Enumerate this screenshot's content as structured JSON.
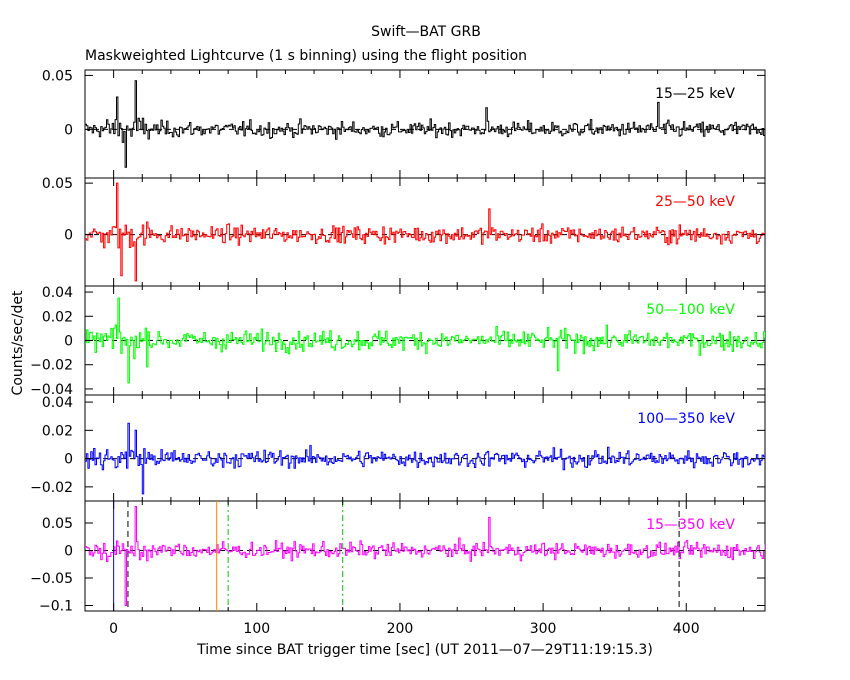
{
  "chart_data": {
    "type": "line",
    "title": "Swift—BAT GRB",
    "subtitle": "Maskweighted Lightcurve (1 s binning) using the flight position",
    "xlabel": "Time since BAT trigger time [sec] (UT 2011—07—29T11:19:15.3)",
    "ylabel": "Counts/sec/det",
    "xlim": [
      -20,
      455
    ],
    "x_ticks": [
      {
        "v": 0,
        "t": "0"
      },
      {
        "v": 100,
        "t": "100"
      },
      {
        "v": 200,
        "t": "200"
      },
      {
        "v": 300,
        "t": "300"
      },
      {
        "v": 400,
        "t": "400"
      }
    ],
    "panels": [
      {
        "band": "15—25 keV",
        "color": "#000000",
        "ylim": [
          -0.045,
          0.055
        ],
        "y_ticks": [
          {
            "v": 0.05,
            "t": "0.05"
          },
          {
            "v": 0,
            "t": "0"
          }
        ],
        "noise_sigma": 0.007,
        "spikes": [
          {
            "x": 15,
            "y": 0.045
          },
          {
            "x": 2,
            "y": 0.03
          },
          {
            "x": 8,
            "y": -0.035
          },
          {
            "x": 380,
            "y": 0.025
          },
          {
            "x": 260,
            "y": 0.02
          }
        ]
      },
      {
        "band": "25—50 keV",
        "color": "#ff0000",
        "ylim": [
          -0.05,
          0.055
        ],
        "y_ticks": [
          {
            "v": 0.05,
            "t": "0.05"
          },
          {
            "v": 0,
            "t": "0"
          }
        ],
        "noise_sigma": 0.008,
        "spikes": [
          {
            "x": 2,
            "y": 0.05
          },
          {
            "x": 15,
            "y": -0.045
          },
          {
            "x": 5,
            "y": -0.04
          },
          {
            "x": 262,
            "y": 0.025
          }
        ]
      },
      {
        "band": "50—100 keV",
        "color": "#00ff00",
        "ylim": [
          -0.045,
          0.045
        ],
        "y_ticks": [
          {
            "v": 0.04,
            "t": "0.04"
          },
          {
            "v": 0.02,
            "t": "0.02"
          },
          {
            "v": 0,
            "t": "0"
          },
          {
            "v": -0.02,
            "t": "−0.02"
          },
          {
            "v": -0.04,
            "t": "−0.04"
          }
        ],
        "noise_sigma": 0.008,
        "spikes": [
          {
            "x": 3,
            "y": 0.035
          },
          {
            "x": 10,
            "y": -0.035
          },
          {
            "x": 310,
            "y": -0.025
          }
        ]
      },
      {
        "band": "100—350 keV",
        "color": "#0000ff",
        "ylim": [
          -0.03,
          0.045
        ],
        "y_ticks": [
          {
            "v": 0.04,
            "t": "0.04"
          },
          {
            "v": 0.02,
            "t": "0.02"
          },
          {
            "v": 0,
            "t": "0"
          },
          {
            "v": -0.02,
            "t": "−0.02"
          }
        ],
        "noise_sigma": 0.006,
        "spikes": [
          {
            "x": 10,
            "y": 0.025
          },
          {
            "x": 20,
            "y": -0.025
          },
          {
            "x": 15,
            "y": 0.02
          }
        ]
      },
      {
        "band": "15—350 keV",
        "color": "#ff00ff",
        "ylim": [
          -0.11,
          0.09
        ],
        "y_ticks": [
          {
            "v": 0.05,
            "t": "0.05"
          },
          {
            "v": 0,
            "t": "0"
          },
          {
            "v": -0.05,
            "t": "−0.05"
          },
          {
            "v": -0.1,
            "t": "−0.1"
          }
        ],
        "noise_sigma": 0.014,
        "spikes": [
          {
            "x": 8,
            "y": -0.1
          },
          {
            "x": 15,
            "y": 0.08
          },
          {
            "x": 262,
            "y": 0.06
          }
        ]
      }
    ],
    "markers": [
      {
        "x": 0,
        "style": "solid",
        "color": "#0000ff"
      },
      {
        "x": 10,
        "style": "dashed",
        "color": "#000000"
      },
      {
        "x": 72,
        "style": "solid",
        "color": "#ff8000"
      },
      {
        "x": 80,
        "style": "dashdot",
        "color": "#00cc00"
      },
      {
        "x": 160,
        "style": "dashdot",
        "color": "#00cc00"
      },
      {
        "x": 395,
        "style": "dashed",
        "color": "#000000"
      }
    ]
  }
}
